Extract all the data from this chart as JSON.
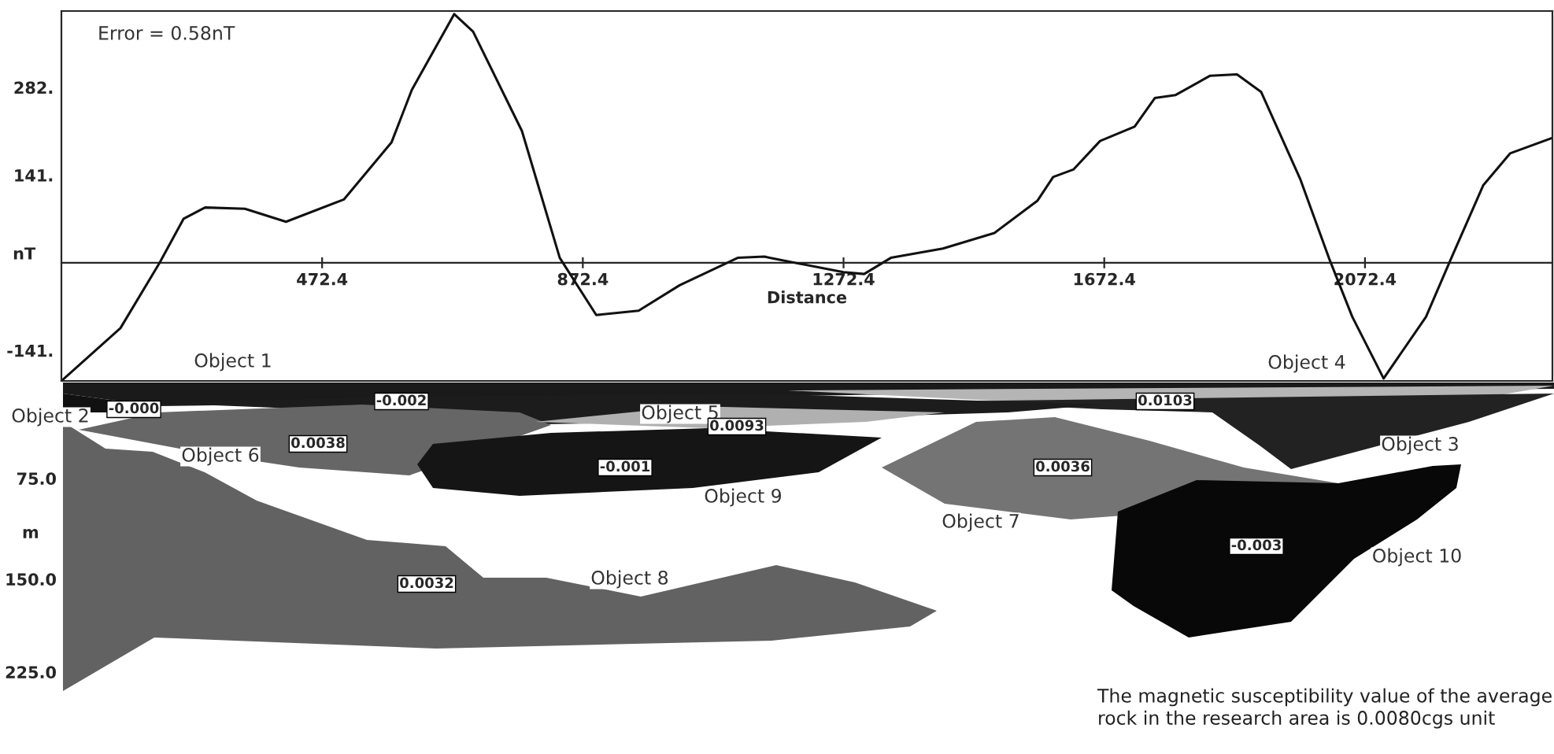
{
  "chart_data": [
    {
      "type": "line",
      "ylabel": "nT",
      "xlabel": "Distance",
      "xlim": [
        72.4,
        2360
      ],
      "ylim": [
        -190,
        405
      ],
      "xticks": [
        {
          "value": 472.4,
          "label": "472.4"
        },
        {
          "value": 872.4,
          "label": "872.4"
        },
        {
          "value": 1272.4,
          "label": "1272.4"
        },
        {
          "value": 1672.4,
          "label": "1672.4"
        },
        {
          "value": 2072.4,
          "label": "2072.4"
        }
      ],
      "yticks": [
        {
          "value": -141,
          "label": "-141."
        },
        {
          "value": 141,
          "label": "141."
        },
        {
          "value": 282,
          "label": "282."
        }
      ],
      "series": [
        {
          "color": "#111111",
          "x": [
            72.4,
            163,
            223,
            260,
            293,
            354,
            417,
            506,
            579,
            610,
            675,
            704,
            779,
            837,
            893,
            958,
            1021,
            1110,
            1151,
            1159,
            1272,
            1304,
            1345,
            1425,
            1504,
            1570,
            1594,
            1625,
            1666,
            1719,
            1750,
            1782,
            1835,
            1876,
            1913,
            1973,
            2017,
            2053,
            2101,
            2166,
            2205,
            2254,
            2295,
            2360
          ],
          "values": [
            -190,
            -105,
            0,
            71,
            89,
            87,
            66,
            102,
            194,
            278,
            400,
            372,
            212,
            8,
            -84,
            -77,
            -36,
            8,
            10,
            8,
            -15,
            -18,
            8,
            23,
            48,
            100,
            138,
            150,
            196,
            219,
            265,
            270,
            301,
            303,
            275,
            135,
            8,
            -87,
            -186,
            -87,
            8,
            125,
            176,
            201
          ]
        }
      ],
      "annotations": [
        "Error = 0.58nT",
        "Object 1",
        "Object 4"
      ]
    },
    {
      "type": "other",
      "ylabel": "m",
      "annotations": [
        "75.0",
        "150.0",
        "225.0",
        "Object 2",
        "-0.000",
        "-0.002",
        "0.0038",
        "Object 6",
        "Object 5",
        "0.0093",
        "-0.001",
        "Object 9",
        "0.0036",
        "Object 7",
        "0.0103",
        "Object 3",
        "-0.003",
        "Object 10",
        "0.0032",
        "Object 8",
        "The magnetic susceptibility value of the average\nrock in the research area is 0.0080cgs unit"
      ]
    }
  ]
}
